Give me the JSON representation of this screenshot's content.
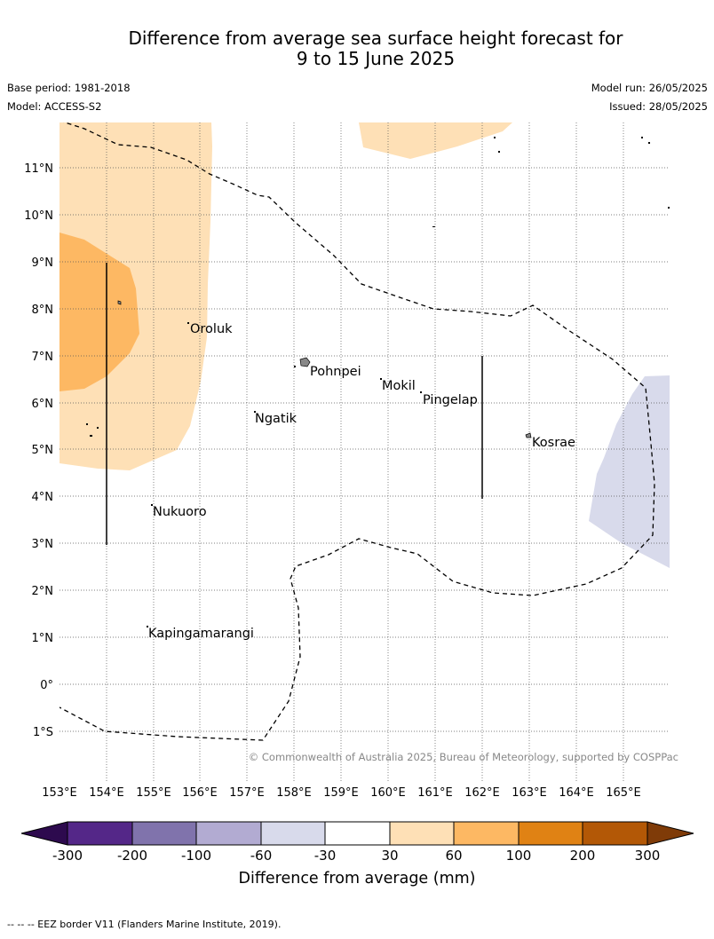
{
  "title_line1": "Difference from average sea surface height forecast for",
  "title_line2": "9 to 15 June 2025",
  "base_period": "Base period: 1981-2018",
  "model": "Model: ACCESS-S2",
  "model_run": "Model run: 26/05/2025",
  "issued": "Issued: 28/05/2025",
  "copyright": "© Commonwealth of Australia 2025, Bureau of Meteorology, supported by COSPPac",
  "lat_labels": [
    "11°N",
    "10°N",
    "9°N",
    "8°N",
    "7°N",
    "6°N",
    "5°N",
    "4°N",
    "3°N",
    "2°N",
    "1°N",
    "0°",
    "1°S"
  ],
  "lon_labels": [
    "153°E",
    "154°E",
    "155°E",
    "156°E",
    "157°E",
    "158°E",
    "159°E",
    "160°E",
    "161°E",
    "162°E",
    "163°E",
    "164°E",
    "165°E"
  ],
  "places": {
    "oroluk": "Oroluk",
    "pohnpei": "Pohnpei",
    "mokil": "Mokil",
    "pingelap": "Pingelap",
    "ngatik": "Ngatik",
    "kosrae": "Kosrae",
    "nukuoro": "Nukuoro",
    "kapingamarangi": "Kapingamarangi"
  },
  "colorbar": {
    "labels": [
      "-300",
      "-200",
      "-100",
      "-60",
      "-30",
      "30",
      "60",
      "100",
      "200",
      "300"
    ],
    "colors": [
      "#2d0a4e",
      "#542788",
      "#8073ac",
      "#b2abd2",
      "#d8daeb",
      "#ffffff",
      "#fee0b6",
      "#fdb863",
      "#e08214",
      "#b35806",
      "#7f3b08"
    ],
    "title": "Difference from average (mm)"
  },
  "footnote": "-- -- -- EEZ border V11 (Flanders Marine Institute, 2019)."
}
